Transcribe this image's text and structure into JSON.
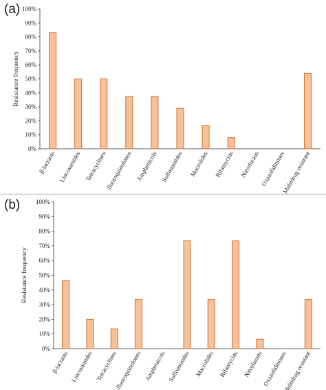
{
  "chart_data": [
    {
      "panel_label": "(a)",
      "type": "bar",
      "categories": [
        "β-lactams",
        "Lincosamides",
        "Tetracyclines",
        "fluoroquinolones",
        "Amphenicols",
        "Sulfonamides",
        "Macrolides",
        "Rifamycins",
        "Nitrofurans",
        "Oxazolidinones",
        "Multidrug resistant"
      ],
      "values": [
        83,
        50,
        50,
        37.5,
        37.5,
        29,
        16.5,
        8,
        0,
        0,
        54
      ],
      "ylabel": "Resistance frequency",
      "yticks": [
        "0%",
        "10%",
        "20%",
        "30%",
        "40%",
        "50%",
        "60%",
        "70%",
        "80%",
        "90%",
        "100%"
      ],
      "ylim": [
        0,
        100
      ],
      "grid": false,
      "bar_fill": "#f8c19a",
      "bar_stroke": "#c8742e"
    },
    {
      "panel_label": "(b)",
      "type": "bar",
      "categories": [
        "β-lactams",
        "Lincosamides",
        "Tetracyclines",
        "fluoroquinolones",
        "Amphenicols",
        "Sulfonamides",
        "Macrolides",
        "Rifamycins",
        "Nitrofurans",
        "Oxazolidinones",
        "Multidrug resistant"
      ],
      "values": [
        46.5,
        20,
        13.5,
        33.5,
        0,
        73.5,
        33.5,
        73.5,
        6.5,
        0,
        33.5
      ],
      "ylabel": "Resistance frequency",
      "yticks": [
        "0%",
        "10%",
        "20%",
        "30%",
        "40%",
        "50%",
        "60%",
        "70%",
        "80%",
        "90%",
        "100%"
      ],
      "ylim": [
        0,
        100
      ],
      "grid": false,
      "bar_fill": "#f8c19a",
      "bar_stroke": "#c8742e"
    }
  ]
}
